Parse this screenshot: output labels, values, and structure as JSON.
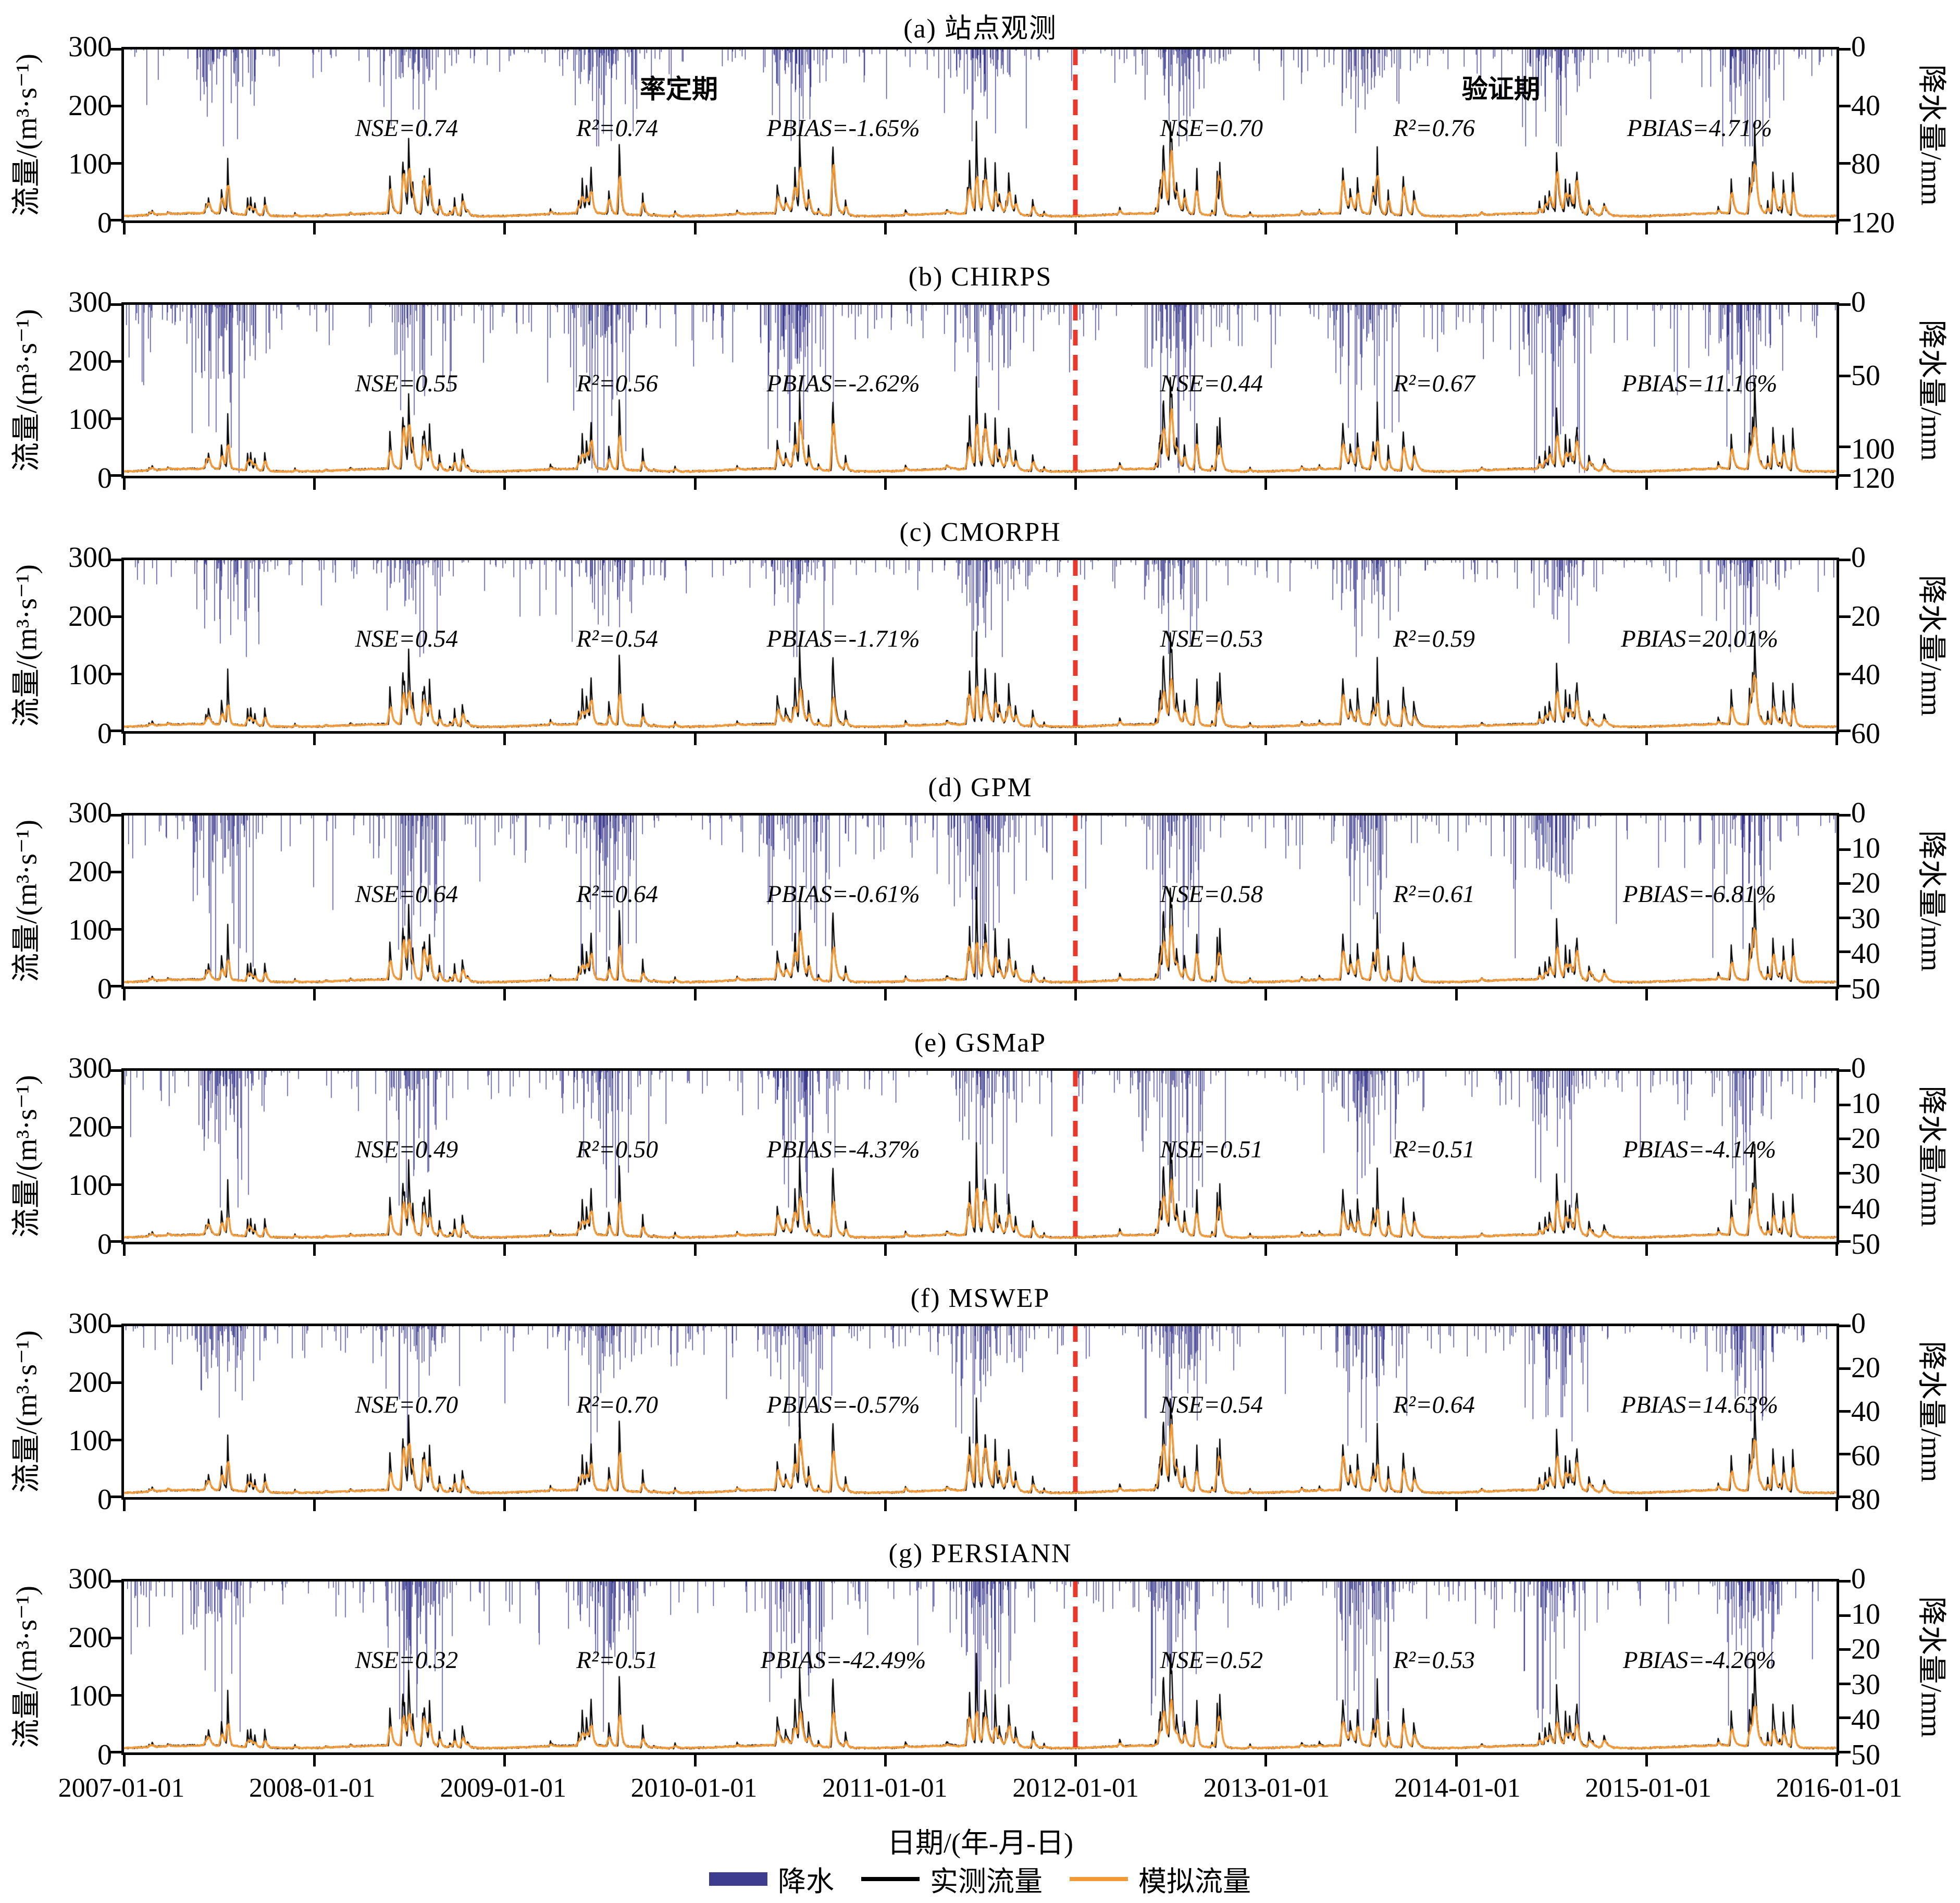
{
  "chart_data": {
    "type": "line",
    "subtype": "multi-panel daily hydrograph (flow lines) with inverted precipitation bars",
    "x_axis": {
      "label": "日期/(年-月-日)",
      "start": "2007-01-01",
      "end": "2016-01-01",
      "tick_labels": [
        "2007-01-01",
        "2008-01-01",
        "2009-01-01",
        "2010-01-01",
        "2011-01-01",
        "2012-01-01",
        "2013-01-01",
        "2014-01-01",
        "2015-01-01",
        "2016-01-01"
      ]
    },
    "flow_axis": {
      "label": "流量/(m³·s⁻¹)",
      "min": 0,
      "max": 300,
      "ticks": [
        0,
        100,
        200,
        300
      ]
    },
    "precip_axis_label": "降水量/mm",
    "divider": {
      "date": "2012-01-01",
      "x_fraction": 0.5556,
      "color": "#E8392E",
      "calibration_label": "率定期",
      "validation_label": "验证期",
      "calibration_label_x_pct": 32.4,
      "validation_label_x_pct": 80.4
    },
    "stat_labels": {
      "nse": "NSE",
      "r2": "R²",
      "pbias": "PBIAS"
    },
    "panels": [
      {
        "id": "a",
        "title": "(a) 站点观测",
        "precip_max": 120,
        "precip_ticks": [
          0,
          40,
          80,
          120
        ],
        "calibration": {
          "nse": "0.74",
          "r2": "0.74",
          "pbias": "-1.65%"
        },
        "validation": {
          "nse": "0.70",
          "r2": "0.76",
          "pbias": "4.71%"
        },
        "est": {
          "precip_max_event_mm": 68,
          "sim_peak_scale": 1.0,
          "seed": 101
        }
      },
      {
        "id": "b",
        "title": "(b) CHIRPS",
        "precip_max": 120,
        "precip_ticks": [
          0,
          50,
          100,
          120
        ],
        "calibration": {
          "nse": "0.55",
          "r2": "0.56",
          "pbias": "-2.62%"
        },
        "validation": {
          "nse": "0.44",
          "r2": "0.67",
          "pbias": "11.16%"
        },
        "est": {
          "precip_max_event_mm": 118,
          "sim_peak_scale": 0.9,
          "seed": 202
        }
      },
      {
        "id": "c",
        "title": "(c) CMORPH",
        "precip_max": 60,
        "precip_ticks": [
          0,
          20,
          40,
          60
        ],
        "calibration": {
          "nse": "0.54",
          "r2": "0.54",
          "pbias": "-1.71%"
        },
        "validation": {
          "nse": "0.53",
          "r2": "0.59",
          "pbias": "20.01%"
        },
        "est": {
          "precip_max_event_mm": 34,
          "sim_peak_scale": 0.8,
          "seed": 303
        }
      },
      {
        "id": "d",
        "title": "(d) GPM",
        "precip_max": 50,
        "precip_ticks": [
          0,
          10,
          20,
          30,
          40,
          50
        ],
        "calibration": {
          "nse": "0.64",
          "r2": "0.64",
          "pbias": "-0.61%"
        },
        "validation": {
          "nse": "0.58",
          "r2": "0.61",
          "pbias": "-6.81%"
        },
        "est": {
          "precip_max_event_mm": 48,
          "sim_peak_scale": 0.88,
          "seed": 404
        }
      },
      {
        "id": "e",
        "title": "(e) GSMaP",
        "precip_max": 50,
        "precip_ticks": [
          0,
          10,
          20,
          30,
          40,
          50
        ],
        "calibration": {
          "nse": "0.49",
          "r2": "0.50",
          "pbias": "-4.37%"
        },
        "validation": {
          "nse": "0.51",
          "r2": "0.51",
          "pbias": "-4.14%"
        },
        "est": {
          "precip_max_event_mm": 40,
          "sim_peak_scale": 0.85,
          "seed": 505
        }
      },
      {
        "id": "f",
        "title": "(f) MSWEP",
        "precip_max": 80,
        "precip_ticks": [
          0,
          20,
          40,
          60,
          80
        ],
        "calibration": {
          "nse": "0.70",
          "r2": "0.70",
          "pbias": "-0.57%"
        },
        "validation": {
          "nse": "0.54",
          "r2": "0.64",
          "pbias": "14.63%"
        },
        "est": {
          "precip_max_event_mm": 56,
          "sim_peak_scale": 0.95,
          "seed": 606
        }
      },
      {
        "id": "g",
        "title": "(g) PERSIANN",
        "precip_max": 50,
        "precip_ticks": [
          0,
          10,
          20,
          30,
          40,
          50
        ],
        "calibration": {
          "nse": "0.32",
          "r2": "0.51",
          "pbias": "-42.49%"
        },
        "validation": {
          "nse": "0.52",
          "r2": "0.53",
          "pbias": "-4.26%"
        },
        "est": {
          "precip_max_event_mm": 44,
          "sim_peak_scale": 0.78,
          "seed": 707
        }
      }
    ],
    "observed_flow_est": {
      "baseflow_m3s": 10,
      "years": [
        2007,
        2008,
        2009,
        2010,
        2011,
        2012,
        2013,
        2014,
        2015
      ],
      "annual_peaks_m3s": [
        105,
        135,
        120,
        140,
        170,
        160,
        120,
        115,
        150
      ]
    },
    "legend": {
      "items": [
        {
          "label": "降水",
          "color": "#3D3C8F",
          "swatch": "bar"
        },
        {
          "label": "实测流量",
          "color": "#000000",
          "swatch": "line"
        },
        {
          "label": "模拟流量",
          "color": "#F09A38",
          "swatch": "line"
        }
      ]
    },
    "colors": {
      "precip": "#3D3C8F",
      "observed": "#000000",
      "simulated": "#F09A38",
      "divider": "#E8392E"
    }
  }
}
